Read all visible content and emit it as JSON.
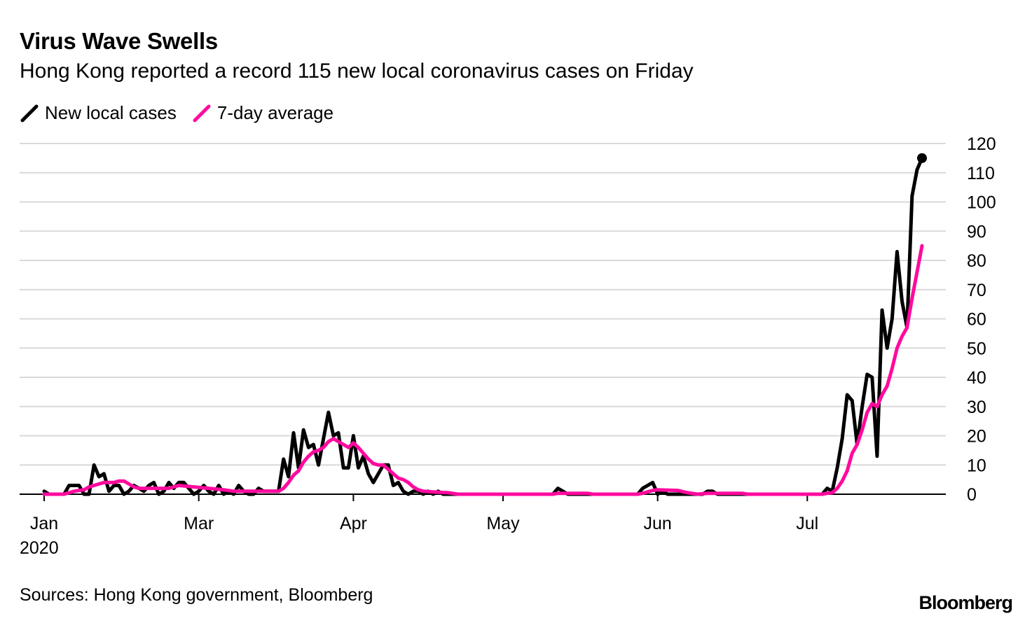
{
  "title": "Virus Wave Swells",
  "subtitle": "Hong Kong reported a record 115 new local coronavirus cases on Friday",
  "source": "Sources: Hong Kong government, Bloomberg",
  "logo": "Bloomberg",
  "colors": {
    "new_local_cases": "#000000",
    "seven_day_average": "#ff0a9e",
    "grid": "#d9d9d9"
  },
  "chart_data": {
    "type": "line",
    "title": "Virus Wave Swells",
    "subtitle": "Hong Kong reported a record 115 new local coronavirus cases on Friday",
    "legend": [
      "New local cases",
      "7-day average"
    ],
    "legend_placement": "top-left",
    "grid": true,
    "xlim": [
      "2020-01-30",
      "2020-07-24"
    ],
    "ylim": [
      0,
      120
    ],
    "y_axis_side": "right",
    "y_ticks": [
      0,
      10,
      20,
      30,
      40,
      50,
      60,
      70,
      80,
      90,
      100,
      110,
      120
    ],
    "x_ticks": [
      {
        "date": "2020-01-30",
        "label": "Jan",
        "sublabel": "2020"
      },
      {
        "date": "2020-03-01",
        "label": "Mar"
      },
      {
        "date": "2020-04-01",
        "label": "Apr"
      },
      {
        "date": "2020-05-01",
        "label": "May"
      },
      {
        "date": "2020-06-01",
        "label": "Jun"
      },
      {
        "date": "2020-07-01",
        "label": "Jul"
      }
    ],
    "series": [
      {
        "name": "New local cases",
        "color": "#000000",
        "end_marker": true,
        "points": [
          [
            "2020-01-30",
            1
          ],
          [
            "2020-01-31",
            0
          ],
          [
            "2020-02-03",
            0
          ],
          [
            "2020-02-04",
            3
          ],
          [
            "2020-02-05",
            3
          ],
          [
            "2020-02-06",
            3
          ],
          [
            "2020-02-07",
            0
          ],
          [
            "2020-02-08",
            0
          ],
          [
            "2020-02-09",
            10
          ],
          [
            "2020-02-10",
            6
          ],
          [
            "2020-02-11",
            7
          ],
          [
            "2020-02-12",
            1
          ],
          [
            "2020-02-13",
            3
          ],
          [
            "2020-02-14",
            3
          ],
          [
            "2020-02-15",
            0
          ],
          [
            "2020-02-16",
            1
          ],
          [
            "2020-02-17",
            3
          ],
          [
            "2020-02-18",
            2
          ],
          [
            "2020-02-19",
            1
          ],
          [
            "2020-02-20",
            3
          ],
          [
            "2020-02-21",
            4
          ],
          [
            "2020-02-22",
            0
          ],
          [
            "2020-02-23",
            1
          ],
          [
            "2020-02-24",
            4
          ],
          [
            "2020-02-25",
            2
          ],
          [
            "2020-02-26",
            4
          ],
          [
            "2020-02-27",
            4
          ],
          [
            "2020-02-28",
            2
          ],
          [
            "2020-02-29",
            0
          ],
          [
            "2020-03-01",
            1
          ],
          [
            "2020-03-02",
            3
          ],
          [
            "2020-03-03",
            1
          ],
          [
            "2020-03-04",
            0
          ],
          [
            "2020-03-05",
            3
          ],
          [
            "2020-03-06",
            0
          ],
          [
            "2020-03-07",
            1
          ],
          [
            "2020-03-08",
            0
          ],
          [
            "2020-03-09",
            3
          ],
          [
            "2020-03-10",
            1
          ],
          [
            "2020-03-11",
            0
          ],
          [
            "2020-03-12",
            0
          ],
          [
            "2020-03-13",
            2
          ],
          [
            "2020-03-14",
            1
          ],
          [
            "2020-03-15",
            1
          ],
          [
            "2020-03-16",
            1
          ],
          [
            "2020-03-17",
            1
          ],
          [
            "2020-03-18",
            12
          ],
          [
            "2020-03-19",
            6
          ],
          [
            "2020-03-20",
            21
          ],
          [
            "2020-03-21",
            9
          ],
          [
            "2020-03-22",
            22
          ],
          [
            "2020-03-23",
            16
          ],
          [
            "2020-03-24",
            17
          ],
          [
            "2020-03-25",
            10
          ],
          [
            "2020-03-26",
            19
          ],
          [
            "2020-03-27",
            28
          ],
          [
            "2020-03-28",
            20
          ],
          [
            "2020-03-29",
            21
          ],
          [
            "2020-03-30",
            9
          ],
          [
            "2020-03-31",
            9
          ],
          [
            "2020-04-01",
            20
          ],
          [
            "2020-04-02",
            9
          ],
          [
            "2020-04-03",
            13
          ],
          [
            "2020-04-04",
            7
          ],
          [
            "2020-04-05",
            4
          ],
          [
            "2020-04-06",
            7
          ],
          [
            "2020-04-07",
            10
          ],
          [
            "2020-04-08",
            10
          ],
          [
            "2020-04-09",
            3
          ],
          [
            "2020-04-10",
            4
          ],
          [
            "2020-04-11",
            1
          ],
          [
            "2020-04-12",
            0
          ],
          [
            "2020-04-13",
            1
          ],
          [
            "2020-04-14",
            1
          ],
          [
            "2020-04-15",
            0
          ],
          [
            "2020-04-16",
            1
          ],
          [
            "2020-04-17",
            0
          ],
          [
            "2020-04-18",
            1
          ],
          [
            "2020-04-19",
            0
          ],
          [
            "2020-05-11",
            0
          ],
          [
            "2020-05-12",
            2
          ],
          [
            "2020-05-13",
            1
          ],
          [
            "2020-05-14",
            0
          ],
          [
            "2020-05-28",
            0
          ],
          [
            "2020-05-29",
            2
          ],
          [
            "2020-05-30",
            3
          ],
          [
            "2020-05-31",
            4
          ],
          [
            "2020-06-01",
            0
          ],
          [
            "2020-06-02",
            1
          ],
          [
            "2020-06-03",
            0
          ],
          [
            "2020-06-10",
            0
          ],
          [
            "2020-06-11",
            1
          ],
          [
            "2020-06-12",
            1
          ],
          [
            "2020-06-13",
            0
          ],
          [
            "2020-07-04",
            0
          ],
          [
            "2020-07-05",
            2
          ],
          [
            "2020-07-06",
            1
          ],
          [
            "2020-07-07",
            9
          ],
          [
            "2020-07-08",
            19
          ],
          [
            "2020-07-09",
            34
          ],
          [
            "2020-07-10",
            32
          ],
          [
            "2020-07-11",
            17
          ],
          [
            "2020-07-12",
            30
          ],
          [
            "2020-07-13",
            41
          ],
          [
            "2020-07-14",
            40
          ],
          [
            "2020-07-15",
            13
          ],
          [
            "2020-07-16",
            63
          ],
          [
            "2020-07-17",
            50
          ],
          [
            "2020-07-18",
            60
          ],
          [
            "2020-07-19",
            83
          ],
          [
            "2020-07-20",
            66
          ],
          [
            "2020-07-21",
            57
          ],
          [
            "2020-07-22",
            102
          ],
          [
            "2020-07-23",
            111
          ],
          [
            "2020-07-24",
            115
          ]
        ]
      },
      {
        "name": "7-day average",
        "color": "#ff0a9e",
        "points": [
          [
            "2020-01-30",
            0
          ],
          [
            "2020-02-03",
            0
          ],
          [
            "2020-02-04",
            0.5
          ],
          [
            "2020-02-05",
            1
          ],
          [
            "2020-02-06",
            1.3
          ],
          [
            "2020-02-07",
            1.5
          ],
          [
            "2020-02-08",
            2.5
          ],
          [
            "2020-02-09",
            3
          ],
          [
            "2020-02-10",
            3.5
          ],
          [
            "2020-02-11",
            4
          ],
          [
            "2020-02-12",
            4
          ],
          [
            "2020-02-13",
            4
          ],
          [
            "2020-02-14",
            4.5
          ],
          [
            "2020-02-15",
            4.5
          ],
          [
            "2020-02-16",
            3.5
          ],
          [
            "2020-02-17",
            2.5
          ],
          [
            "2020-02-18",
            2
          ],
          [
            "2020-02-21",
            2
          ],
          [
            "2020-02-24",
            2
          ],
          [
            "2020-02-26",
            3
          ],
          [
            "2020-02-29",
            2.5
          ],
          [
            "2020-03-03",
            2
          ],
          [
            "2020-03-06",
            1.5
          ],
          [
            "2020-03-08",
            1
          ],
          [
            "2020-03-17",
            1
          ],
          [
            "2020-03-18",
            2
          ],
          [
            "2020-03-19",
            4
          ],
          [
            "2020-03-20",
            6.5
          ],
          [
            "2020-03-21",
            8
          ],
          [
            "2020-03-22",
            11
          ],
          [
            "2020-03-23",
            13
          ],
          [
            "2020-03-24",
            14.5
          ],
          [
            "2020-03-25",
            15
          ],
          [
            "2020-03-26",
            16
          ],
          [
            "2020-03-27",
            18
          ],
          [
            "2020-03-28",
            19
          ],
          [
            "2020-03-29",
            18
          ],
          [
            "2020-03-30",
            17
          ],
          [
            "2020-03-31",
            16
          ],
          [
            "2020-04-01",
            17.5
          ],
          [
            "2020-04-02",
            16
          ],
          [
            "2020-04-03",
            14
          ],
          [
            "2020-04-04",
            12
          ],
          [
            "2020-04-05",
            10.5
          ],
          [
            "2020-04-06",
            10
          ],
          [
            "2020-04-07",
            10
          ],
          [
            "2020-04-08",
            8.5
          ],
          [
            "2020-04-09",
            7
          ],
          [
            "2020-04-10",
            5.5
          ],
          [
            "2020-04-11",
            5
          ],
          [
            "2020-04-12",
            4
          ],
          [
            "2020-04-13",
            2.5
          ],
          [
            "2020-04-14",
            1.5
          ],
          [
            "2020-04-15",
            1
          ],
          [
            "2020-04-17",
            0.8
          ],
          [
            "2020-04-20",
            0.5
          ],
          [
            "2020-04-22",
            0
          ],
          [
            "2020-05-11",
            0
          ],
          [
            "2020-05-12",
            0.3
          ],
          [
            "2020-05-18",
            0.3
          ],
          [
            "2020-05-19",
            0
          ],
          [
            "2020-05-28",
            0
          ],
          [
            "2020-05-29",
            0.3
          ],
          [
            "2020-05-31",
            1.3
          ],
          [
            "2020-06-01",
            1.5
          ],
          [
            "2020-06-05",
            1.3
          ],
          [
            "2020-06-07",
            0.5
          ],
          [
            "2020-06-09",
            0
          ],
          [
            "2020-06-11",
            0.3
          ],
          [
            "2020-06-18",
            0.3
          ],
          [
            "2020-06-19",
            0
          ],
          [
            "2020-07-04",
            0
          ],
          [
            "2020-07-05",
            0.3
          ],
          [
            "2020-07-06",
            0.5
          ],
          [
            "2020-07-07",
            2
          ],
          [
            "2020-07-08",
            4.5
          ],
          [
            "2020-07-09",
            8
          ],
          [
            "2020-07-10",
            14
          ],
          [
            "2020-07-11",
            17
          ],
          [
            "2020-07-12",
            22
          ],
          [
            "2020-07-13",
            28
          ],
          [
            "2020-07-14",
            31
          ],
          [
            "2020-07-15",
            30
          ],
          [
            "2020-07-16",
            34
          ],
          [
            "2020-07-17",
            37
          ],
          [
            "2020-07-18",
            43
          ],
          [
            "2020-07-19",
            50
          ],
          [
            "2020-07-20",
            54
          ],
          [
            "2020-07-21",
            57
          ],
          [
            "2020-07-22",
            67
          ],
          [
            "2020-07-23",
            76
          ],
          [
            "2020-07-24",
            85
          ]
        ]
      }
    ]
  }
}
